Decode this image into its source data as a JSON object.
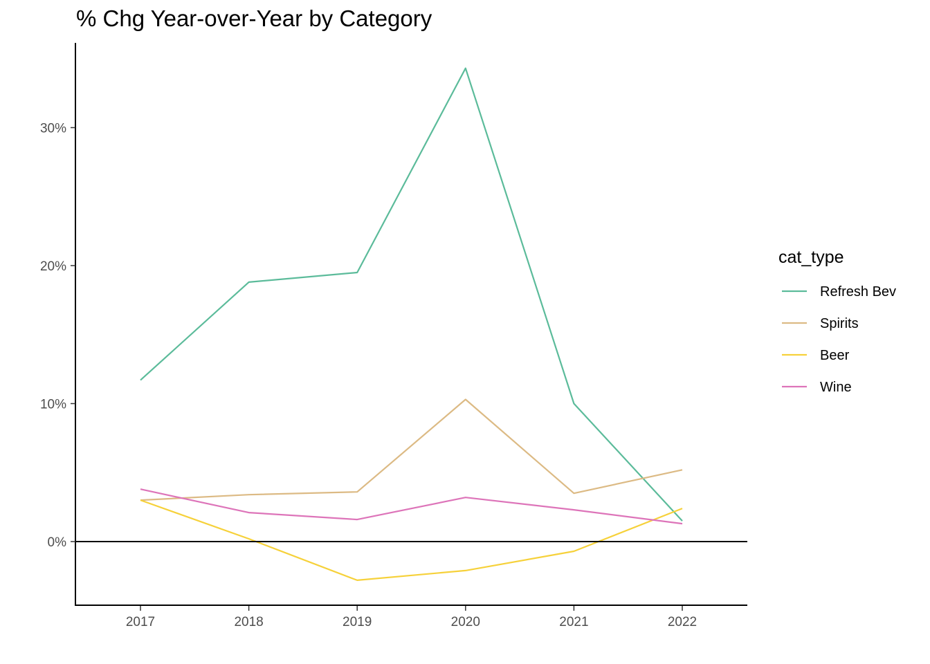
{
  "chart_data": {
    "type": "line",
    "title": "% Chg Year-over-Year by Category",
    "xlabel": "",
    "ylabel": "",
    "x": [
      "2017",
      "2018",
      "2019",
      "2020",
      "2021",
      "2022"
    ],
    "ylim": [
      -4.6,
      36
    ],
    "y_ticks": [
      0,
      10,
      20,
      30
    ],
    "y_tick_labels": [
      "0%",
      "10%",
      "20%",
      "30%"
    ],
    "grid": false,
    "zero_line": true,
    "legend": {
      "title": "cat_type",
      "position": "right"
    },
    "series": [
      {
        "name": "Refresh Bev",
        "color": "#5bbb9a",
        "values": [
          11.7,
          18.8,
          19.5,
          34.3,
          10.0,
          1.5
        ]
      },
      {
        "name": "Spirits",
        "color": "#dcba84",
        "values": [
          3.0,
          3.4,
          3.6,
          10.3,
          3.5,
          5.2
        ]
      },
      {
        "name": "Beer",
        "color": "#f6d13a",
        "values": [
          3.0,
          0.2,
          -2.8,
          -2.1,
          -0.7,
          2.4
        ]
      },
      {
        "name": "Wine",
        "color": "#dd74b9",
        "values": [
          3.8,
          2.1,
          1.6,
          3.2,
          2.3,
          1.3
        ]
      }
    ]
  }
}
